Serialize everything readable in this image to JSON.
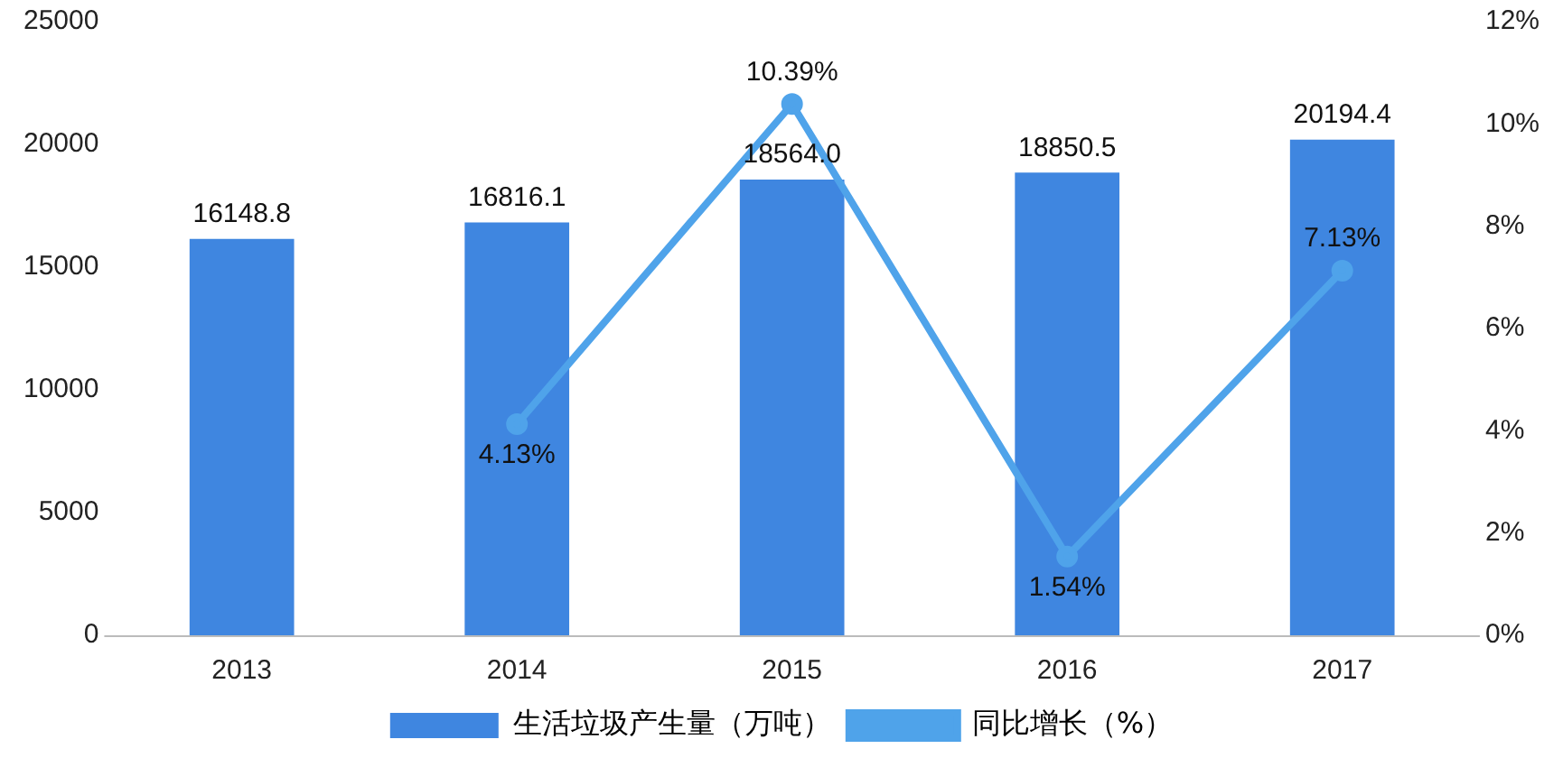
{
  "chart_data": {
    "type": "bar",
    "categories": [
      "2013",
      "2014",
      "2015",
      "2016",
      "2017"
    ],
    "series": [
      {
        "name": "生活垃圾产生量（万吨）",
        "color": "#3f86e0",
        "values": [
          16148.8,
          16816.1,
          18564.0,
          18850.5,
          20194.4
        ],
        "value_labels": [
          "16148.8",
          "16816.1",
          "18564.0",
          "18850.5",
          "20194.4"
        ]
      },
      {
        "name": "同比增长（%）",
        "type": "line",
        "axis": "y2",
        "color": "#4fa3ea",
        "values": [
          null,
          4.13,
          10.39,
          1.54,
          7.13
        ],
        "value_labels": [
          null,
          "4.13%",
          "10.39%",
          "1.54%",
          "7.13%"
        ]
      }
    ],
    "ylim": [
      0,
      25000
    ],
    "yticks": [
      0,
      5000,
      10000,
      15000,
      20000,
      25000
    ],
    "y2lim": [
      0,
      12
    ],
    "y2ticks": [
      {
        "value": 0,
        "label": "0%"
      },
      {
        "value": 2,
        "label": "2%"
      },
      {
        "value": 4,
        "label": "4%"
      },
      {
        "value": 6,
        "label": "6%"
      },
      {
        "value": 8,
        "label": "8%"
      },
      {
        "value": 10,
        "label": "10%"
      },
      {
        "value": 12,
        "label": "12%"
      }
    ],
    "grid": false,
    "legend": "bottom",
    "marker": "circle",
    "line_style": "solid"
  }
}
